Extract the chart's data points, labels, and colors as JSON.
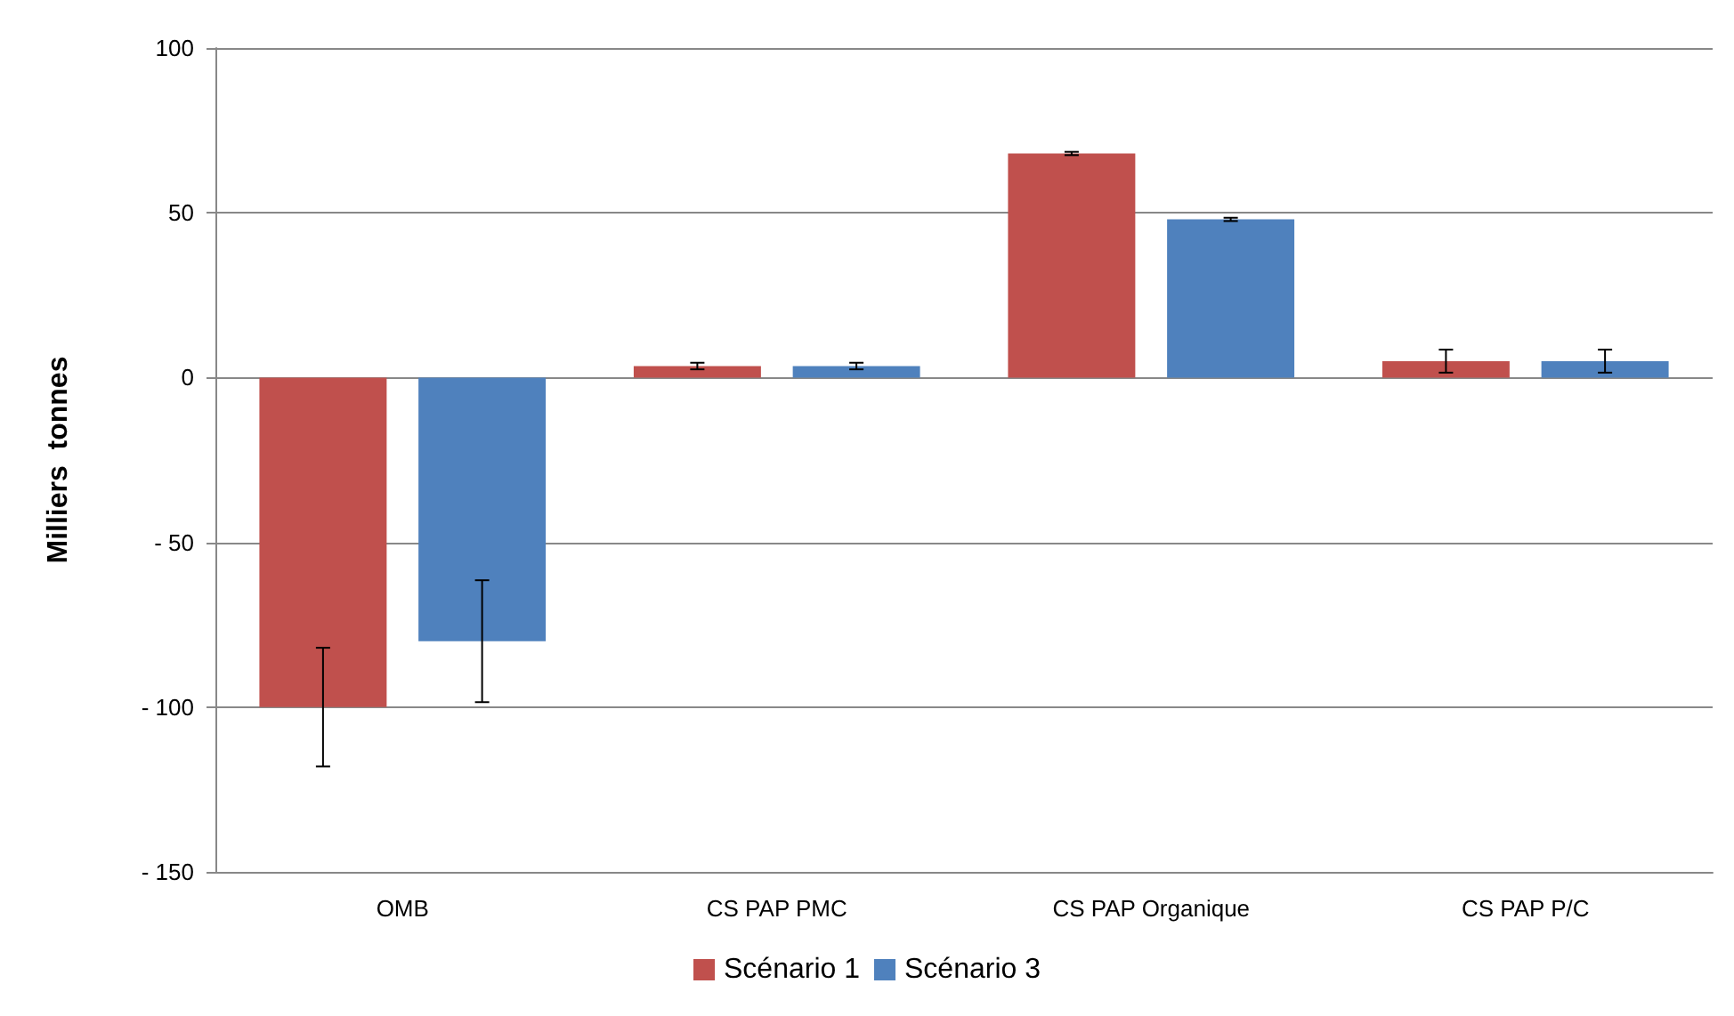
{
  "chart_data": {
    "type": "bar",
    "ylabel": "Milliers  tonnes",
    "categories": [
      "OMB",
      "CS PAP PMC",
      "CS PAP Organique",
      "CS PAP P/C"
    ],
    "series": [
      {
        "name": "Scénario 1",
        "color": "#c0504d",
        "values": [
          -100,
          3.5,
          68,
          5
        ],
        "errors": [
          18,
          1,
          0.5,
          3.5
        ]
      },
      {
        "name": "Scénario 3",
        "color": "#4f81bd",
        "values": [
          -80,
          3.5,
          48,
          5
        ],
        "errors": [
          18.5,
          1,
          0.5,
          3.5
        ]
      }
    ],
    "ylim": [
      -150,
      100
    ],
    "yticks": [
      {
        "value": -150,
        "label": "- 150"
      },
      {
        "value": -100,
        "label": "- 100"
      },
      {
        "value": -50,
        "label": "- 50"
      },
      0,
      50,
      100
    ],
    "grid": "y",
    "legend": "bottom"
  }
}
